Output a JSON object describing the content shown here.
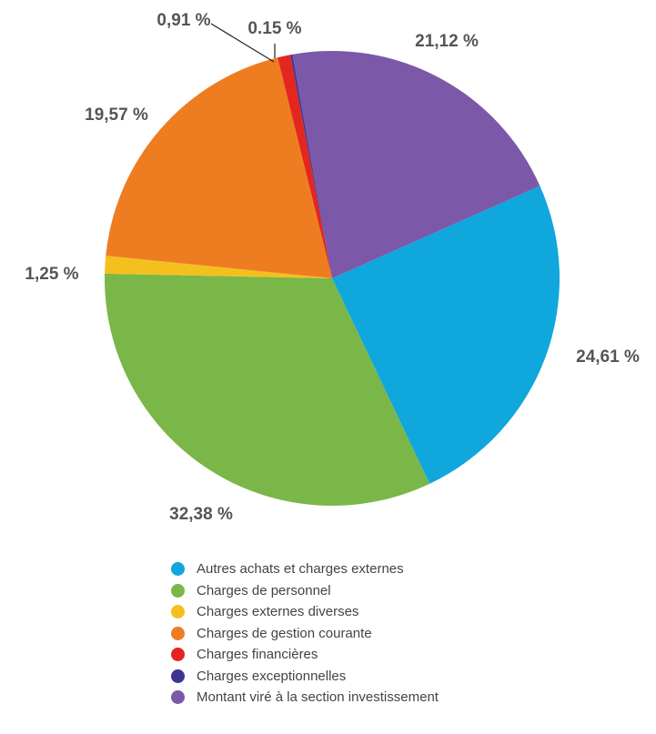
{
  "chart_data": {
    "type": "pie",
    "slices": [
      {
        "name": "Autres achats et charges externes",
        "value": 24.61,
        "label": "24,61 %",
        "color": "#0fa7dc"
      },
      {
        "name": "Charges de personnel",
        "value": 32.38,
        "label": "32,38 %",
        "color": "#7ab648"
      },
      {
        "name": "Charges externes diverses",
        "value": 1.25,
        "label": "1,25 %",
        "color": "#f4c01e"
      },
      {
        "name": "Charges de gestion courante",
        "value": 19.57,
        "label": "19,57 %",
        "color": "#ee7d22"
      },
      {
        "name": "Charges financières",
        "value": 0.91,
        "label": "0,91 %",
        "color": "#e3261e"
      },
      {
        "name": "Charges exceptionnelles",
        "value": 0.15,
        "label": "0.15 %",
        "color": "#3d3690"
      },
      {
        "name": "Montant viré à la section investissement",
        "value": 21.12,
        "label": "21,12 %",
        "color": "#7b58a8"
      }
    ],
    "legend_position": "bottom"
  }
}
